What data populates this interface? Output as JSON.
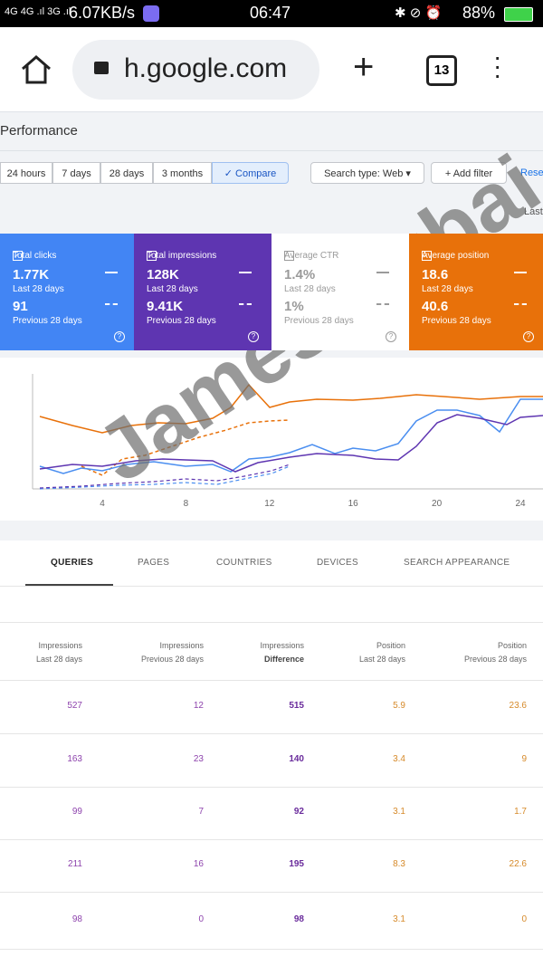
{
  "status_bar": {
    "network": "4G 4G .ıl 3G .ıl",
    "speed": "6.07KB/s",
    "time": "06:47",
    "battery": "88%"
  },
  "browser": {
    "url": "h.google.com",
    "tabs": "13"
  },
  "page": {
    "title": "Performance",
    "date_ranges": [
      "24 hours",
      "7 days",
      "28 days",
      "3 months",
      "Compare"
    ],
    "search_type": "Search type: Web",
    "add_filter": "Add filter",
    "reset": "Rese",
    "last": "Last"
  },
  "cards": [
    {
      "label": "Total clicks",
      "current": "1.77K",
      "current_period": "Last 28 days",
      "previous": "91",
      "previous_period": "Previous 28 days"
    },
    {
      "label": "Total impressions",
      "current": "128K",
      "current_period": "Last 28 days",
      "previous": "9.41K",
      "previous_period": "Previous 28 days"
    },
    {
      "label": "Average CTR",
      "current": "1.4%",
      "current_period": "Last 28 days",
      "previous": "1%",
      "previous_period": "Previous 28 days"
    },
    {
      "label": "Average position",
      "current": "18.6",
      "current_period": "Last 28 days",
      "previous": "40.6",
      "previous_period": "Previous 28 days"
    }
  ],
  "chart": {
    "x_ticks": [
      4,
      8,
      12,
      16,
      20,
      24
    ]
  },
  "tabs": [
    "QUERIES",
    "PAGES",
    "COUNTRIES",
    "DEVICES",
    "SEARCH APPEARANCE"
  ],
  "table": {
    "headers": [
      [
        "Impressions",
        "Last 28 days"
      ],
      [
        "Impressions",
        "Previous 28 days"
      ],
      [
        "Impressions",
        "Difference"
      ],
      [
        "Position",
        "Last 28 days"
      ],
      [
        "Position",
        "Previous 28 days"
      ]
    ],
    "rows": [
      [
        527,
        12,
        515,
        5.9,
        23.6
      ],
      [
        163,
        23,
        140,
        3.4,
        9
      ],
      [
        99,
        7,
        92,
        3.1,
        1.7
      ],
      [
        211,
        16,
        195,
        8.3,
        22.6
      ],
      [
        98,
        0,
        98,
        3.1,
        0
      ]
    ]
  },
  "watermark": "James Agbai"
}
